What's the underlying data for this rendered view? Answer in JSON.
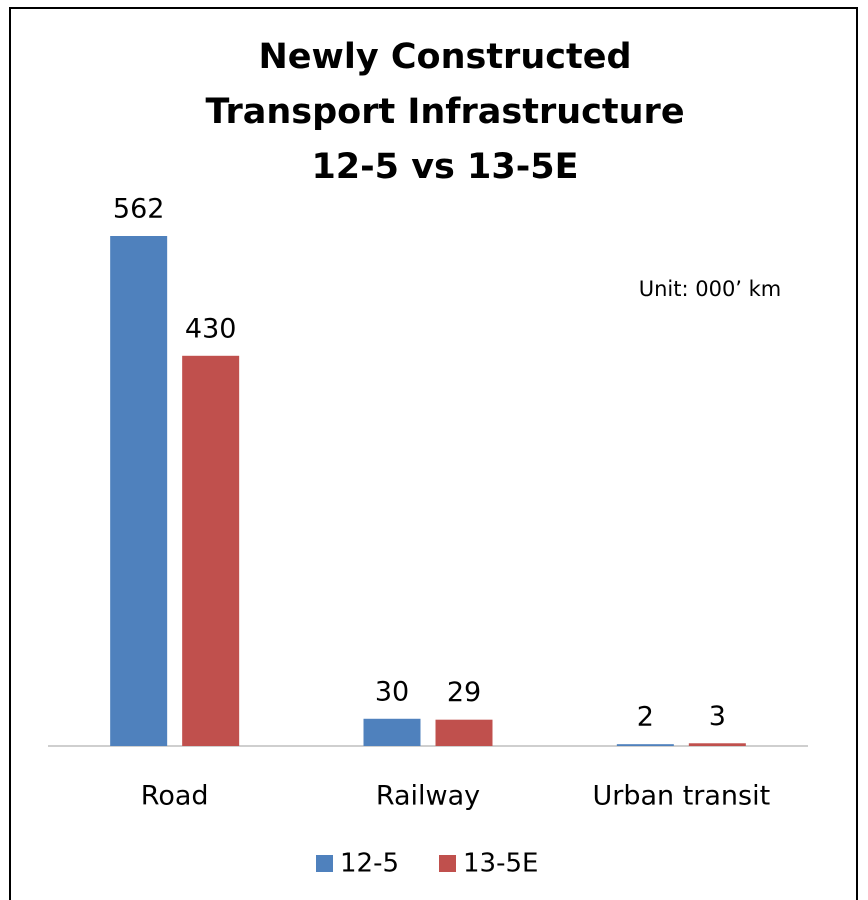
{
  "chart_data": {
    "type": "bar",
    "title": [
      "Newly Constructed",
      "Transport Infrastructure",
      "12-5 vs 13-5E"
    ],
    "annotation": "Unit: 000’ km",
    "categories": [
      "Road",
      "Railway",
      "Urban transit"
    ],
    "series": [
      {
        "name": "12-5",
        "color": "#4f81bd",
        "values": [
          562,
          30,
          2
        ]
      },
      {
        "name": "13-5E",
        "color": "#c0504d",
        "values": [
          430,
          29,
          3
        ]
      }
    ],
    "legend": "bottom"
  }
}
